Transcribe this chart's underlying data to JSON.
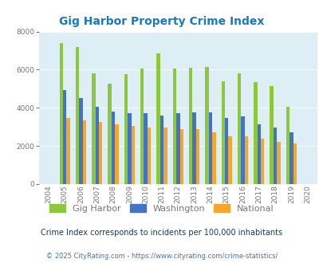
{
  "title": "Gig Harbor Property Crime Index",
  "years": [
    "2004",
    "2005",
    "2006",
    "2007",
    "2008",
    "2009",
    "2010",
    "2011",
    "2012",
    "2013",
    "2014",
    "2015",
    "2016",
    "2017",
    "2018",
    "2019",
    "2020"
  ],
  "gig_harbor": [
    0,
    7400,
    7200,
    5800,
    5250,
    5750,
    6050,
    6850,
    6050,
    6100,
    6150,
    5400,
    5800,
    5350,
    5150,
    4050,
    0
  ],
  "washington": [
    0,
    4950,
    4500,
    4050,
    3800,
    3700,
    3700,
    3600,
    3700,
    3750,
    3750,
    3450,
    3550,
    3150,
    2950,
    2700,
    0
  ],
  "national": [
    0,
    3450,
    3350,
    3250,
    3150,
    3050,
    2950,
    2950,
    2900,
    2900,
    2700,
    2500,
    2500,
    2400,
    2200,
    2150,
    0
  ],
  "colors": {
    "gig_harbor": "#8dc63f",
    "washington": "#4472c4",
    "national": "#f0a830"
  },
  "bg_color": "#ddeef4",
  "ylim": [
    0,
    8000
  ],
  "yticks": [
    0,
    2000,
    4000,
    6000,
    8000
  ],
  "subtitle": "Crime Index corresponds to incidents per 100,000 inhabitants",
  "footer": "© 2025 CityRating.com - https://www.cityrating.com/crime-statistics/",
  "title_color": "#1a7abf",
  "subtitle_color": "#1a3a5c",
  "footer_color": "#4472c4",
  "label_color": "#777777"
}
